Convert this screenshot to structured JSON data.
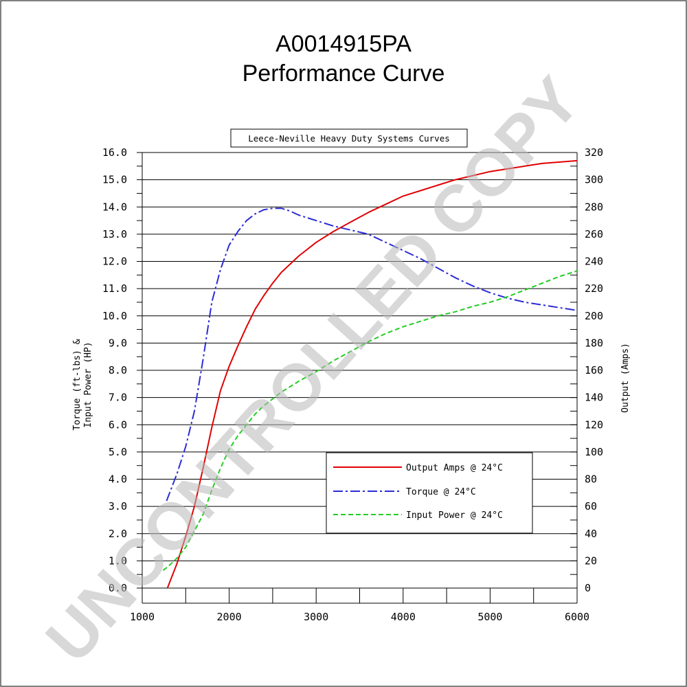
{
  "page": {
    "title_line1": "A0014915PA",
    "title_line2": "Performance Curve",
    "box_title": "Leece-Neville Heavy Duty Systems Curves",
    "watermark": "UNCONTROLLED COPY"
  },
  "chart_data": {
    "type": "line",
    "x": [
      1250,
      1300,
      1400,
      1500,
      1600,
      1700,
      1750,
      1800,
      1900,
      2000,
      2100,
      2200,
      2300,
      2400,
      2500,
      2600,
      2700,
      2800,
      2900,
      3000,
      3200,
      3400,
      3600,
      3800,
      4000,
      4200,
      4400,
      4600,
      4800,
      5000,
      5200,
      5400,
      5600,
      5800,
      6000
    ],
    "xlabel": "",
    "xlim": [
      1000,
      6000
    ],
    "x_ticks": [
      "1000",
      "2000",
      "3000",
      "4000",
      "5000",
      "6000"
    ],
    "left_axis": {
      "label_line1": "Torque (ft-lbs) &",
      "label_line2": "Input Power (HP)",
      "ylim": [
        0,
        16
      ],
      "ticks": [
        "0.0",
        "1.0",
        "2.0",
        "3.0",
        "4.0",
        "5.0",
        "6.0",
        "7.0",
        "8.0",
        "9.0",
        "10.0",
        "11.0",
        "12.0",
        "13.0",
        "14.0",
        "15.0",
        "16.0"
      ]
    },
    "right_axis": {
      "label": "Output (Amps)",
      "ylim": [
        0,
        320
      ],
      "ticks": [
        "0",
        "20",
        "40",
        "60",
        "80",
        "100",
        "120",
        "140",
        "160",
        "180",
        "200",
        "220",
        "240",
        "260",
        "280",
        "300",
        "320"
      ]
    },
    "series": [
      {
        "name": "Output Amps @ 24°C",
        "axis": "right",
        "color": "#e00000",
        "dash": "solid",
        "points": [
          [
            1290,
            0
          ],
          [
            1400,
            18
          ],
          [
            1500,
            38
          ],
          [
            1600,
            60
          ],
          [
            1700,
            88
          ],
          [
            1800,
            118
          ],
          [
            1900,
            145
          ],
          [
            2000,
            163
          ],
          [
            2100,
            178
          ],
          [
            2200,
            192
          ],
          [
            2300,
            205
          ],
          [
            2400,
            215
          ],
          [
            2500,
            224
          ],
          [
            2600,
            232
          ],
          [
            2800,
            244
          ],
          [
            3000,
            254
          ],
          [
            3200,
            262
          ],
          [
            3400,
            269
          ],
          [
            3600,
            276
          ],
          [
            3800,
            282
          ],
          [
            4000,
            288
          ],
          [
            4200,
            292
          ],
          [
            4400,
            296
          ],
          [
            4600,
            300
          ],
          [
            4800,
            303
          ],
          [
            5000,
            306
          ],
          [
            5200,
            308
          ],
          [
            5400,
            310
          ],
          [
            5600,
            312
          ],
          [
            5800,
            313
          ],
          [
            6000,
            314
          ]
        ]
      },
      {
        "name": "Torque @ 24°C",
        "axis": "left",
        "color": "#2b2bd6",
        "dash": "dashdot",
        "points": [
          [
            1280,
            3.2
          ],
          [
            1400,
            4.2
          ],
          [
            1500,
            5.2
          ],
          [
            1600,
            6.5
          ],
          [
            1700,
            8.4
          ],
          [
            1800,
            10.5
          ],
          [
            1900,
            11.7
          ],
          [
            2000,
            12.6
          ],
          [
            2100,
            13.1
          ],
          [
            2200,
            13.5
          ],
          [
            2300,
            13.75
          ],
          [
            2400,
            13.9
          ],
          [
            2500,
            13.95
          ],
          [
            2600,
            13.95
          ],
          [
            2700,
            13.85
          ],
          [
            2800,
            13.7
          ],
          [
            3000,
            13.5
          ],
          [
            3200,
            13.3
          ],
          [
            3400,
            13.15
          ],
          [
            3600,
            13.0
          ],
          [
            3800,
            12.7
          ],
          [
            4000,
            12.4
          ],
          [
            4200,
            12.1
          ],
          [
            4400,
            11.75
          ],
          [
            4600,
            11.4
          ],
          [
            4800,
            11.1
          ],
          [
            5000,
            10.85
          ],
          [
            5200,
            10.65
          ],
          [
            5400,
            10.5
          ],
          [
            5600,
            10.4
          ],
          [
            5800,
            10.3
          ],
          [
            6000,
            10.2
          ]
        ]
      },
      {
        "name": "Input Power @ 24°C",
        "axis": "left",
        "color": "#22cc22",
        "dash": "dash",
        "points": [
          [
            1240,
            0.65
          ],
          [
            1300,
            0.8
          ],
          [
            1400,
            1.1
          ],
          [
            1500,
            1.5
          ],
          [
            1600,
            2.1
          ],
          [
            1700,
            2.7
          ],
          [
            1800,
            3.6
          ],
          [
            1900,
            4.4
          ],
          [
            2000,
            5.1
          ],
          [
            2100,
            5.6
          ],
          [
            2200,
            6.0
          ],
          [
            2300,
            6.4
          ],
          [
            2400,
            6.7
          ],
          [
            2500,
            6.95
          ],
          [
            2600,
            7.2
          ],
          [
            2800,
            7.6
          ],
          [
            3000,
            7.95
          ],
          [
            3200,
            8.35
          ],
          [
            3400,
            8.7
          ],
          [
            3600,
            9.05
          ],
          [
            3800,
            9.35
          ],
          [
            4000,
            9.6
          ],
          [
            4200,
            9.8
          ],
          [
            4400,
            10.0
          ],
          [
            4600,
            10.15
          ],
          [
            4800,
            10.35
          ],
          [
            5000,
            10.5
          ],
          [
            5200,
            10.7
          ],
          [
            5400,
            10.95
          ],
          [
            5600,
            11.2
          ],
          [
            5800,
            11.45
          ],
          [
            6000,
            11.65
          ]
        ]
      }
    ],
    "grid": true,
    "legend_position": "lower-right"
  }
}
